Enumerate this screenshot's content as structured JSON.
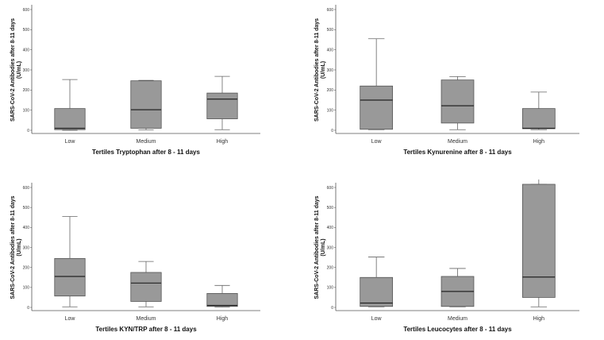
{
  "chart_data": [
    {
      "type": "box",
      "xlabel": "Tertiles Tryptophan after 8 - 11 days",
      "ylabel_line1": "SARS-CoV-2 Antibodies after 8-11 days",
      "ylabel_line2": "(U/mL)",
      "ylim": [
        0,
        600
      ],
      "yticks": [
        0,
        100,
        200,
        300,
        400,
        500,
        600
      ],
      "categories": [
        "Low",
        "Medium",
        "High"
      ],
      "boxes": [
        {
          "min": 0,
          "q1": 3,
          "median": 10,
          "q3": 108,
          "max": 252
        },
        {
          "min": 2,
          "q1": 10,
          "median": 102,
          "q3": 246,
          "max": 248
        },
        {
          "min": 3,
          "q1": 57,
          "median": 155,
          "q3": 185,
          "max": 268
        }
      ],
      "box_color": "#999999"
    },
    {
      "type": "box",
      "xlabel": "Tertiles Kynurenine after 8 - 11 days",
      "ylabel_line1": "SARS-CoV-2 Antibodies after 8-11 days",
      "ylabel_line2": "(U/mL)",
      "ylim": [
        0,
        600
      ],
      "yticks": [
        0,
        100,
        200,
        300,
        400,
        500,
        600
      ],
      "categories": [
        "Low",
        "Medium",
        "High"
      ],
      "boxes": [
        {
          "min": 3,
          "q1": 5,
          "median": 150,
          "q3": 220,
          "max": 455
        },
        {
          "min": 3,
          "q1": 36,
          "median": 122,
          "q3": 250,
          "max": 267
        },
        {
          "min": 3,
          "q1": 8,
          "median": 10,
          "q3": 108,
          "max": 190
        }
      ],
      "box_color": "#999999"
    },
    {
      "type": "box",
      "xlabel": "Tertiles KYN/TRP after 8 - 11 days",
      "ylabel_line1": "SARS-CoV-2 Antibodies after 8-11 days",
      "ylabel_line2": "(U/mL)",
      "ylim": [
        0,
        600
      ],
      "yticks": [
        0,
        100,
        200,
        300,
        400,
        500,
        600
      ],
      "categories": [
        "Low",
        "Medium",
        "High"
      ],
      "boxes": [
        {
          "min": 3,
          "q1": 57,
          "median": 155,
          "q3": 245,
          "max": 455
        },
        {
          "min": 3,
          "q1": 30,
          "median": 122,
          "q3": 175,
          "max": 230
        },
        {
          "min": 2,
          "q1": 5,
          "median": 10,
          "q3": 70,
          "max": 110
        }
      ],
      "box_color": "#999999"
    },
    {
      "type": "box",
      "xlabel": "Tertiles Leucocytes after 8 - 11 days",
      "ylabel_line1": "SARS-CoV-2 Antibodies after 8-11 days",
      "ylabel_line2": "(U/mL)",
      "ylim": [
        0,
        600
      ],
      "yticks": [
        0,
        100,
        200,
        300,
        400,
        500,
        600
      ],
      "categories": [
        "Low",
        "Medium",
        "High"
      ],
      "boxes": [
        {
          "min": 3,
          "q1": 5,
          "median": 22,
          "q3": 150,
          "max": 252
        },
        {
          "min": 3,
          "q1": 5,
          "median": 80,
          "q3": 155,
          "max": 195
        },
        {
          "min": 3,
          "q1": 50,
          "median": 152,
          "q3": 640,
          "max": 640
        }
      ],
      "box_color": "#999999"
    }
  ]
}
